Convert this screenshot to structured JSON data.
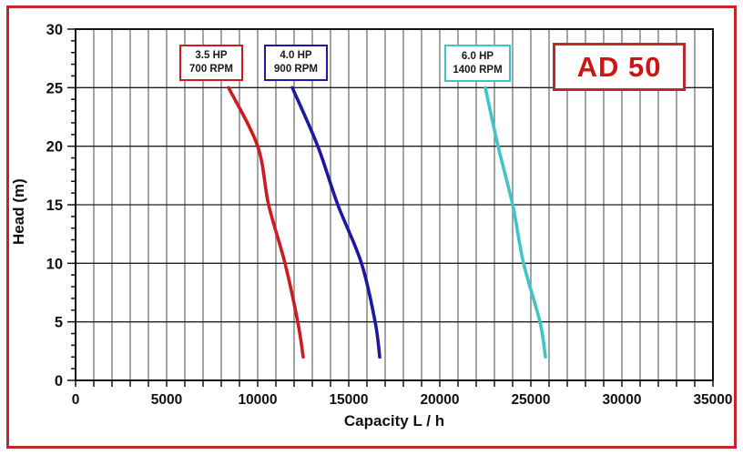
{
  "chart_data": {
    "type": "line",
    "title": "AD 50",
    "xlabel": "Capacity  L / h",
    "ylabel": "Head (m)",
    "xlim": [
      0,
      35000
    ],
    "ylim": [
      0,
      30
    ],
    "x_tick_values": [
      0,
      5000,
      10000,
      15000,
      20000,
      25000,
      30000,
      35000
    ],
    "x_tick_labels": [
      "0",
      "5000",
      "10000",
      "15000",
      "20000",
      "25000",
      "30000",
      "35000"
    ],
    "x_grid_step": 1000,
    "y_tick_values": [
      0,
      5,
      10,
      15,
      20,
      25,
      30
    ],
    "y_tick_labels": [
      "0",
      "5",
      "10",
      "15",
      "20",
      "25",
      "30"
    ],
    "y_minor_step": 1,
    "grid": {
      "vertical_color": "#7d7d7d",
      "horizontal_color": "#1f1f1f",
      "border_color": "#111111"
    },
    "legend_position": "labels-above-curves",
    "series": [
      {
        "name": "3.5 HP 700 RPM",
        "label_line1": "3.5 HP",
        "label_line2": "700 RPM",
        "color": "#ce1b20",
        "points": [
          [
            8400,
            25
          ],
          [
            10000,
            20
          ],
          [
            10600,
            15
          ],
          [
            11500,
            10
          ],
          [
            12200,
            5
          ],
          [
            12500,
            2
          ]
        ]
      },
      {
        "name": "4.0 HP 900 RPM",
        "label_line1": "4.0 HP",
        "label_line2": "900 RPM",
        "color": "#1c18a0",
        "points": [
          [
            11900,
            25
          ],
          [
            13300,
            20
          ],
          [
            14400,
            15
          ],
          [
            15700,
            10
          ],
          [
            16450,
            5
          ],
          [
            16700,
            2
          ]
        ]
      },
      {
        "name": "6.0 HP 1400 RPM",
        "label_line1": "6.0 HP",
        "label_line2": "1400 RPM",
        "color": "#41c4c4",
        "points": [
          [
            22500,
            25
          ],
          [
            23200,
            20
          ],
          [
            24000,
            15
          ],
          [
            24600,
            10
          ],
          [
            25500,
            5
          ],
          [
            25800,
            2
          ]
        ]
      }
    ]
  },
  "frame": {
    "border_color": "#c0272b",
    "badge_text_color": "#d01317"
  }
}
